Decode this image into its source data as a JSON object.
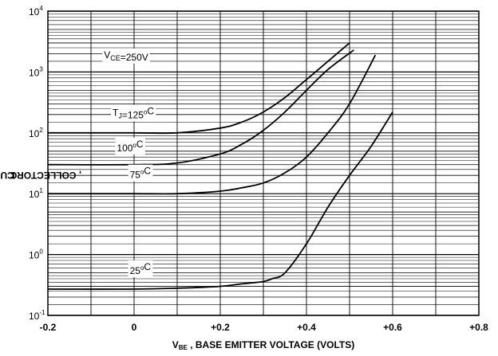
{
  "chart_data": {
    "type": "line",
    "x_axis": {
      "label_main": "V",
      "label_sub": "BE",
      "label_rest": " , BASE  EMITTER VOLTAGE (VOLTS)",
      "range": [
        -0.2,
        0.8
      ],
      "ticks": [
        {
          "value": -0.2,
          "label": "-0.2"
        },
        {
          "value": 0,
          "label": "0"
        },
        {
          "value": 0.2,
          "label": "+0.2"
        },
        {
          "value": 0.4,
          "label": "+0.4"
        },
        {
          "value": 0.6,
          "label": "+0.6"
        },
        {
          "value": 0.8,
          "label": "+0.8"
        }
      ]
    },
    "y_axis": {
      "label_main": "I",
      "label_sub": "C",
      "label_rest": " , COLLECTOR CURRENT (uA)",
      "scale": "log",
      "range": [
        0.1,
        10000
      ],
      "ticks": [
        {
          "value": 0.1,
          "base": "10",
          "exp": "-1"
        },
        {
          "value": 1,
          "base": "10",
          "exp": "0"
        },
        {
          "value": 10,
          "base": "10",
          "exp": "1"
        },
        {
          "value": 100,
          "base": "10",
          "exp": "2"
        },
        {
          "value": 1000,
          "base": "10",
          "exp": "3"
        },
        {
          "value": 10000,
          "base": "10",
          "exp": "4"
        }
      ]
    },
    "grid": true,
    "series": [
      {
        "name": "125°C",
        "x": [
          -0.2,
          0,
          0.1,
          0.2,
          0.25,
          0.3,
          0.35,
          0.4,
          0.45,
          0.5
        ],
        "y": [
          100,
          100,
          100,
          120,
          150,
          220,
          380,
          750,
          1500,
          3000
        ]
      },
      {
        "name": "100°C",
        "x": [
          -0.2,
          0,
          0.1,
          0.2,
          0.25,
          0.3,
          0.35,
          0.4,
          0.45,
          0.51
        ],
        "y": [
          30,
          30,
          32,
          45,
          65,
          110,
          220,
          500,
          1100,
          2300
        ]
      },
      {
        "name": "75°C",
        "x": [
          -0.2,
          0,
          0.1,
          0.2,
          0.25,
          0.3,
          0.35,
          0.4,
          0.45,
          0.5,
          0.56
        ],
        "y": [
          10,
          10,
          10,
          11,
          12.5,
          15,
          22,
          40,
          100,
          300,
          1900
        ]
      },
      {
        "name": "25°C",
        "x": [
          -0.2,
          0,
          0.1,
          0.2,
          0.25,
          0.3,
          0.32,
          0.35,
          0.4,
          0.45,
          0.5,
          0.55,
          0.6
        ],
        "y": [
          0.27,
          0.27,
          0.28,
          0.3,
          0.33,
          0.36,
          0.4,
          0.5,
          1.5,
          6,
          20,
          60,
          220
        ]
      }
    ],
    "annotations": [
      {
        "id": "vce",
        "parts": [
          {
            "t": "V"
          },
          {
            "t": "CE",
            "sub": true
          },
          {
            "t": "=250V"
          }
        ],
        "x": -0.07,
        "y": 1700
      },
      {
        "id": "tj125",
        "parts": [
          {
            "t": "T"
          },
          {
            "t": "J",
            "sub": true
          },
          {
            "t": "=125"
          },
          {
            "t": "o",
            "sup": true
          },
          {
            "t": "C"
          }
        ],
        "x": -0.05,
        "y": 190
      },
      {
        "id": "t100",
        "parts": [
          {
            "t": "100"
          },
          {
            "t": "o",
            "sup": true
          },
          {
            "t": "C"
          }
        ],
        "x": -0.04,
        "y": 50
      },
      {
        "id": "t75",
        "parts": [
          {
            "t": "75"
          },
          {
            "t": "o",
            "sup": true
          },
          {
            "t": "C"
          }
        ],
        "x": -0.01,
        "y": 18
      },
      {
        "id": "t25",
        "parts": [
          {
            "t": "25"
          },
          {
            "t": "o",
            "sup": true
          },
          {
            "t": "C"
          }
        ],
        "x": -0.01,
        "y": 0.48
      }
    ]
  }
}
